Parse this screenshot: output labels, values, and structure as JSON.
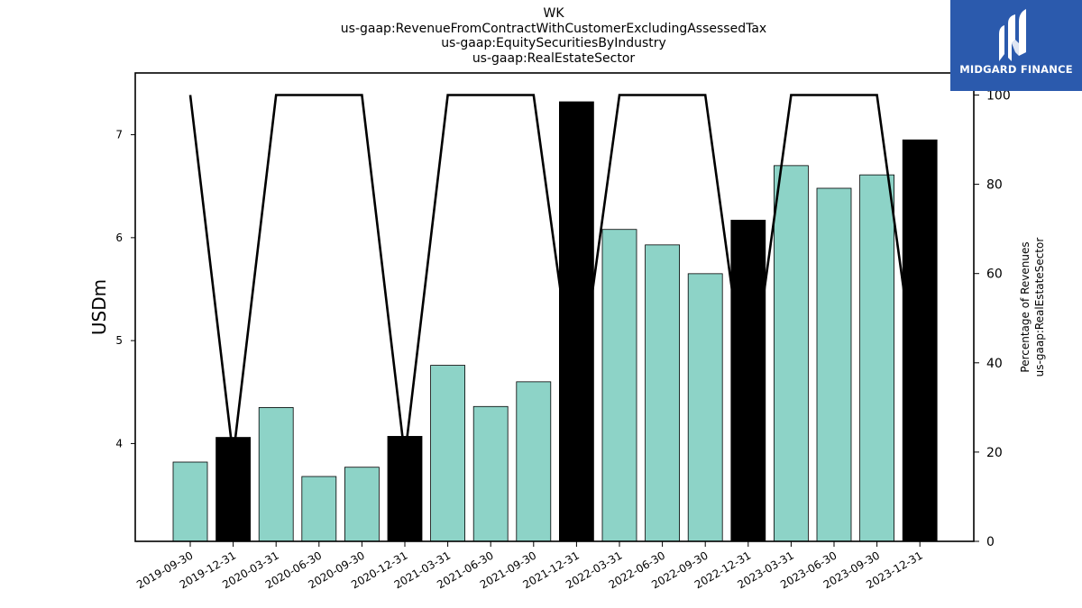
{
  "chart_data": {
    "type": "bar",
    "title_lines": [
      "WK",
      "us-gaap:RevenueFromContractWithCustomerExcludingAssessedTax",
      "us-gaap:EquitySecuritiesByIndustry",
      "us-gaap:RealEstateSector"
    ],
    "ylabel": "USDm",
    "y2label_lines": [
      "Percentage of Revenues",
      "us-gaap:RealEstateSector"
    ],
    "categories": [
      "2019-09-30",
      "2019-12-31",
      "2020-03-31",
      "2020-06-30",
      "2020-09-30",
      "2020-12-31",
      "2021-03-31",
      "2021-06-30",
      "2021-09-30",
      "2021-12-31",
      "2022-03-31",
      "2022-06-30",
      "2022-09-30",
      "2022-12-31",
      "2023-03-31",
      "2023-06-30",
      "2023-09-30",
      "2023-12-31"
    ],
    "values": [
      3.82,
      4.06,
      4.35,
      3.68,
      3.77,
      4.07,
      4.76,
      4.36,
      4.6,
      7.32,
      6.08,
      5.93,
      5.65,
      6.17,
      6.7,
      6.48,
      6.61,
      6.95
    ],
    "highlight": [
      false,
      true,
      false,
      false,
      false,
      true,
      false,
      false,
      false,
      true,
      false,
      false,
      false,
      true,
      false,
      false,
      false,
      true
    ],
    "line_values": [
      100,
      19,
      100,
      100,
      100,
      19,
      100,
      100,
      100,
      30,
      100,
      100,
      100,
      30,
      100,
      100,
      100,
      30
    ],
    "ylim": [
      3.05,
      7.6
    ],
    "y_ticks": [
      4,
      5,
      6,
      7
    ],
    "y2lim": [
      0,
      100
    ],
    "y2_ticks": [
      0,
      20,
      40,
      60,
      80,
      100
    ],
    "grid": false,
    "colors": {
      "bar": "#8dd3c7",
      "highlight": "#000000",
      "line": "#000000"
    }
  },
  "logo": {
    "text": "MIDGARD FINANCE",
    "background": "#2b5aad"
  }
}
